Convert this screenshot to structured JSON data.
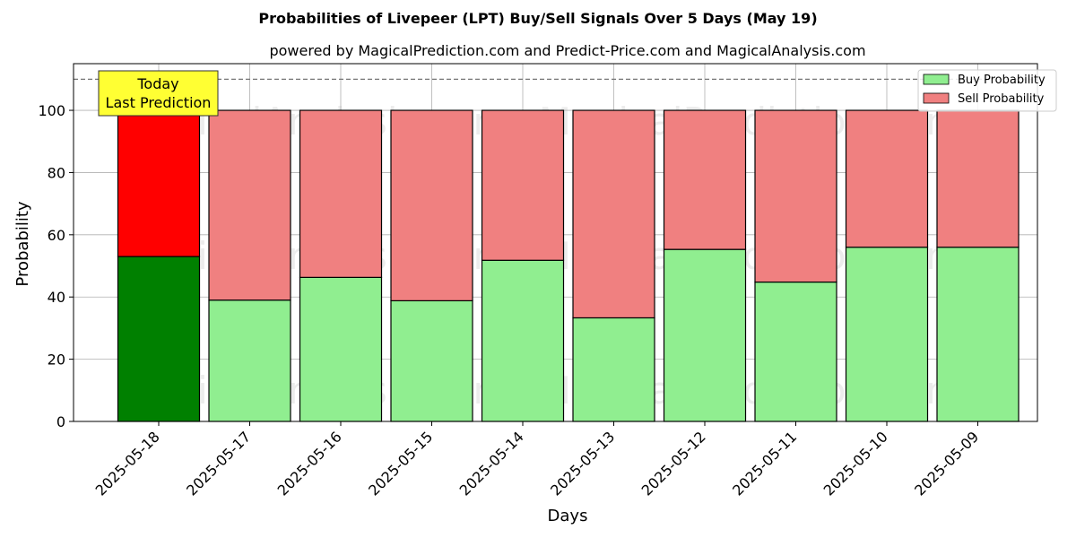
{
  "chart_data": {
    "type": "bar",
    "stacked": true,
    "title": "Probabilities of Livepeer (LPT) Buy/Sell Signals Over 5 Days (May 19)",
    "subtitle": "powered by MagicalPrediction.com and Predict-Price.com and MagicalAnalysis.com",
    "xlabel": "Days",
    "ylabel": "Probability",
    "ylim": [
      0,
      115
    ],
    "yticks": [
      "0",
      "20",
      "40",
      "60",
      "80",
      "100"
    ],
    "grid": true,
    "legend_position": "top-right",
    "categories": [
      "2025-05-18",
      "2025-05-17",
      "2025-05-16",
      "2025-05-15",
      "2025-05-14",
      "2025-05-13",
      "2025-05-12",
      "2025-05-11",
      "2025-05-10",
      "2025-05-09"
    ],
    "series": [
      {
        "name": "Buy Probability",
        "values": [
          53,
          39,
          46.3,
          38.8,
          51.8,
          33.3,
          55.3,
          44.8,
          56,
          56
        ],
        "color": "#90ee90",
        "highlight_color": "#008000"
      },
      {
        "name": "Sell Probability",
        "values": [
          47,
          61,
          53.7,
          61.2,
          48.2,
          66.7,
          44.7,
          55.2,
          44,
          44
        ],
        "color": "#f08080",
        "highlight_color": "#ff0000"
      }
    ],
    "highlight_index": 0,
    "reference_line": {
      "y": 110,
      "style": "dashed"
    },
    "annotation": {
      "lines": [
        "Today",
        "Last Prediction"
      ],
      "background": "#ffff33"
    },
    "watermarks": [
      "MagicalAnalysis.com",
      "MagicalPrediction.com"
    ]
  }
}
